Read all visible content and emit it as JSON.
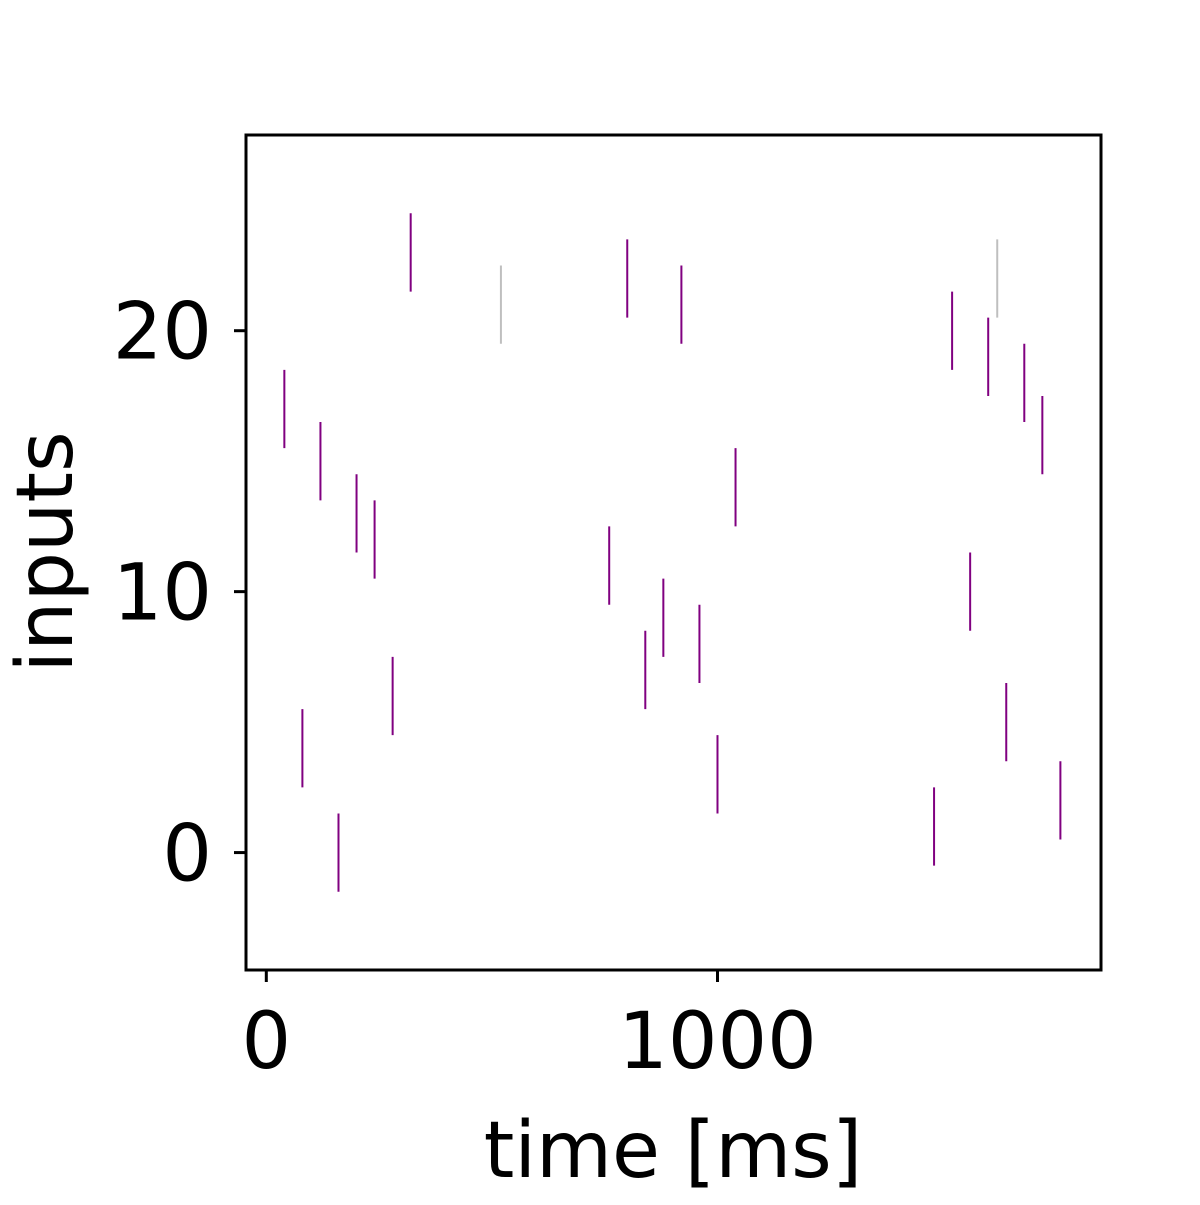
{
  "chart_data": {
    "type": "scatter",
    "marker": "vertical-line",
    "title": "",
    "xlabel": "time [ms]",
    "ylabel": "inputs",
    "xlim": [
      -45,
      1850
    ],
    "ylim": [
      -4.5,
      27.5
    ],
    "xticks": [
      0,
      1000
    ],
    "xtick_labels": [
      "0",
      "1000"
    ],
    "yticks": [
      0,
      10,
      20
    ],
    "ytick_labels": [
      "0",
      "10",
      "20"
    ],
    "grid": false,
    "legend": "none",
    "colors": {
      "spike": "#800080",
      "faded_spike": "#bfbfbf",
      "frame": "#000000"
    },
    "series": [
      {
        "color": "#800080",
        "points": [
          {
            "x": 40,
            "y": 17
          },
          {
            "x": 80,
            "y": 4
          },
          {
            "x": 120,
            "y": 15
          },
          {
            "x": 160,
            "y": 0
          },
          {
            "x": 200,
            "y": 13
          },
          {
            "x": 240,
            "y": 12
          },
          {
            "x": 280,
            "y": 6
          },
          {
            "x": 320,
            "y": 23
          },
          {
            "x": 760,
            "y": 11
          },
          {
            "x": 800,
            "y": 22
          },
          {
            "x": 840,
            "y": 7
          },
          {
            "x": 880,
            "y": 9
          },
          {
            "x": 920,
            "y": 21
          },
          {
            "x": 960,
            "y": 8
          },
          {
            "x": 1000,
            "y": 3
          },
          {
            "x": 1040,
            "y": 14
          },
          {
            "x": 1480,
            "y": 1
          },
          {
            "x": 1520,
            "y": 20
          },
          {
            "x": 1560,
            "y": 10
          },
          {
            "x": 1600,
            "y": 19
          },
          {
            "x": 1640,
            "y": 5
          },
          {
            "x": 1680,
            "y": 18
          },
          {
            "x": 1720,
            "y": 16
          },
          {
            "x": 1760,
            "y": 2
          }
        ]
      },
      {
        "color": "#bfbfbf",
        "points": [
          {
            "x": 520,
            "y": 21
          },
          {
            "x": 1620,
            "y": 22
          }
        ]
      }
    ]
  }
}
